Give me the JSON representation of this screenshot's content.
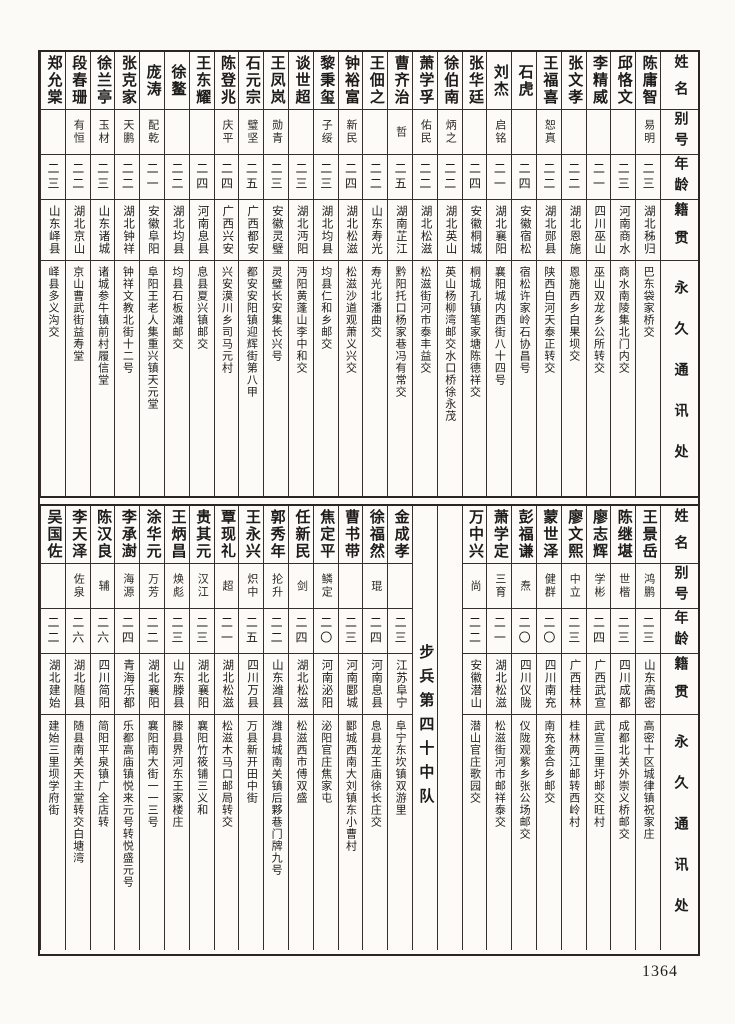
{
  "page_number": "1364",
  "headers": {
    "name": "姓名",
    "alias": "别号",
    "age": "年龄",
    "native_place": "籍贯",
    "address": "永久通讯处"
  },
  "sections": [
    {
      "columns": [
        {
          "type": "person",
          "name": "陈庸智",
          "alias": "易明",
          "age": "二三",
          "native": "湖北秭归",
          "address": "巴东袋家桥交"
        },
        {
          "type": "person",
          "name": "邱恪文",
          "alias": "",
          "age": "二三",
          "native": "河南商水",
          "address": "商水南陵集北门内交"
        },
        {
          "type": "person",
          "name": "李精威",
          "alias": "",
          "age": "二一",
          "native": "四川巫山",
          "address": "巫山双龙乡公所转交"
        },
        {
          "type": "person",
          "name": "张文孝",
          "alias": "",
          "age": "二二",
          "native": "湖北恩施",
          "address": "恩施西乡白果坝交"
        },
        {
          "type": "person",
          "name": "王福喜",
          "alias": "恕真",
          "age": "二二",
          "native": "湖北郧县",
          "address": "陕西白河天泰正转交"
        },
        {
          "type": "person",
          "name": "石虎",
          "alias": "",
          "age": "二四",
          "native": "安徽宿松",
          "address": "宿松许家岭石协昌号"
        },
        {
          "type": "person",
          "name": "刘杰",
          "alias": "启铭",
          "age": "二一",
          "native": "湖北襄阳",
          "address": "襄阳城内西街八十四号"
        },
        {
          "type": "person",
          "name": "张华廷",
          "alias": "",
          "age": "二四",
          "native": "安徽桐城",
          "address": "桐城孔镇笔家塘陈德祥交"
        },
        {
          "type": "person",
          "name": "徐伯南",
          "alias": "炳之",
          "age": "二二",
          "native": "湖北英山",
          "address": "英山杨柳湾邮交水口桥徐永茂"
        },
        {
          "type": "person",
          "name": "萧学孚",
          "alias": "佑民",
          "age": "二二",
          "native": "湖北松滋",
          "address": "松滋街河市泰丰益交"
        },
        {
          "type": "person",
          "name": "曹齐治",
          "alias": "哲",
          "age": "二五",
          "native": "湖南芷江",
          "address": "黔阳托口杨家巷冯有常交"
        },
        {
          "type": "person",
          "name": "王佃之",
          "alias": "",
          "age": "二二",
          "native": "山东寿光",
          "address": "寿光北潘曲交"
        },
        {
          "type": "person",
          "name": "钟裕富",
          "alias": "新民",
          "age": "二四",
          "native": "湖北松滋",
          "address": "松滋沙道观萧义兴交"
        },
        {
          "type": "person",
          "name": "黎秉玺",
          "alias": "子绥",
          "age": "二三",
          "native": "湖北均县",
          "address": "均县仁和乡邮交"
        },
        {
          "type": "person",
          "name": "谈世超",
          "alias": "",
          "age": "二三",
          "native": "湖北沔阳",
          "address": "沔阳黄蓬山李中和交"
        },
        {
          "type": "person",
          "name": "王凤岚",
          "alias": "勋青",
          "age": "二三",
          "native": "安徽灵璧",
          "address": "灵璧长安集长兴号"
        },
        {
          "type": "person",
          "name": "石元宗",
          "alias": "璧坚",
          "age": "二五",
          "native": "广西都安",
          "address": "都安安阳镇迎辉街第八甲"
        },
        {
          "type": "person",
          "name": "陈登兆",
          "alias": "庆平",
          "age": "二四",
          "native": "广西兴安",
          "address": "兴安漠川乡司马元村"
        },
        {
          "type": "person",
          "name": "王东耀",
          "alias": "",
          "age": "二四",
          "native": "河南息县",
          "address": "息县夏兴镇邮交"
        },
        {
          "type": "person",
          "name": "徐鳌",
          "alias": "",
          "age": "二二",
          "native": "湖北均县",
          "address": "均县石板滩邮交"
        },
        {
          "type": "person",
          "name": "庞涛",
          "alias": "配乾",
          "age": "二一",
          "native": "安徽阜阳",
          "address": "阜阳王老人集重兴镇天元堂"
        },
        {
          "type": "person",
          "name": "张克家",
          "alias": "天鹏",
          "age": "二二",
          "native": "湖北钟祥",
          "address": "钟祥文教北街十二号"
        },
        {
          "type": "person",
          "name": "徐兰亭",
          "alias": "玉材",
          "age": "二三",
          "native": "山东诸城",
          "address": "诸城参牛镇前村履信堂"
        },
        {
          "type": "person",
          "name": "段春珊",
          "alias": "有恒",
          "age": "二二",
          "native": "湖北京山",
          "address": "京山曹武街益寿堂"
        },
        {
          "type": "person",
          "name": "郑允棠",
          "alias": "",
          "age": "二三",
          "native": "山东峄县",
          "address": "峄县多义沟交"
        }
      ]
    },
    {
      "columns": [
        {
          "type": "person",
          "name": "王景岳",
          "alias": "鸿鹏",
          "age": "二三",
          "native": "山东高密",
          "address": "高密十区城律镇祝家庄"
        },
        {
          "type": "person",
          "name": "陈继堪",
          "alias": "世楷",
          "age": "二三",
          "native": "四川成都",
          "address": "成都北关外崇义桥邮交"
        },
        {
          "type": "person",
          "name": "廖志辉",
          "alias": "学彬",
          "age": "二四",
          "native": "广西武宣",
          "address": "武宣三里圩邮交旺村"
        },
        {
          "type": "person",
          "name": "廖文熙",
          "alias": "中立",
          "age": "二三",
          "native": "广西桂林",
          "address": "桂林两江邮转西岭村"
        },
        {
          "type": "person",
          "name": "蒙世泽",
          "alias": "健群",
          "age": "二〇",
          "native": "四川南充",
          "address": "南充金合乡邮交"
        },
        {
          "type": "person",
          "name": "彭福谦",
          "alias": "焘",
          "age": "二〇",
          "native": "四川仪陇",
          "address": "仪陇观紫乡张公场邮交"
        },
        {
          "type": "person",
          "name": "萧学定",
          "alias": "三育",
          "age": "二一",
          "native": "湖北松滋",
          "address": "松滋街河市邮祥泰交"
        },
        {
          "type": "person",
          "name": "万中兴",
          "alias": "尚",
          "age": "二二",
          "native": "安徽潜山",
          "address": "潜山官庄歌园交"
        },
        {
          "type": "spacer"
        },
        {
          "type": "unit",
          "label": "步兵第四十中队"
        },
        {
          "type": "person",
          "name": "金成孝",
          "alias": "",
          "age": "二三",
          "native": "江苏阜宁",
          "address": "阜宁东坎镇双游里"
        },
        {
          "type": "person",
          "name": "徐福然",
          "alias": "琨",
          "age": "二四",
          "native": "河南息县",
          "address": "息县龙王庙徐长庄交"
        },
        {
          "type": "person",
          "name": "曹书带",
          "alias": "",
          "age": "二三",
          "native": "河南郾城",
          "address": "郾城西南大刘镇东小曹村"
        },
        {
          "type": "person",
          "name": "焦定平",
          "alias": "鳞定",
          "age": "二〇",
          "native": "河南泌阳",
          "address": "泌阳官庄焦家屯"
        },
        {
          "type": "person",
          "name": "任新民",
          "alias": "剑",
          "age": "二四",
          "native": "湖北松滋",
          "address": "松滋西市傅双盛"
        },
        {
          "type": "person",
          "name": "郭秀年",
          "alias": "抡升",
          "age": "二二",
          "native": "山东潍县",
          "address": "潍县城南关镇后夥巷门牌九号"
        },
        {
          "type": "person",
          "name": "王永兴",
          "alias": "炽中",
          "age": "二五",
          "native": "四川万县",
          "address": "万县新开田中街"
        },
        {
          "type": "person",
          "name": "覃现礼",
          "alias": "超",
          "age": "二一",
          "native": "湖北松滋",
          "address": "松滋木马口邮局转交"
        },
        {
          "type": "person",
          "name": "贵其元",
          "alias": "汉江",
          "age": "二三",
          "native": "湖北襄阳",
          "address": "襄阳竹筱铺三义和"
        },
        {
          "type": "person",
          "name": "王炳昌",
          "alias": "焕彪",
          "age": "二三",
          "native": "山东滕县",
          "address": "滕县界河东王家楼庄"
        },
        {
          "type": "person",
          "name": "涂华元",
          "alias": "万芳",
          "age": "二二",
          "native": "湖北襄阳",
          "address": "襄阳南大街一一三号"
        },
        {
          "type": "person",
          "name": "李承澍",
          "alias": "海源",
          "age": "二四",
          "native": "青海乐都",
          "address": "乐都高庙镇悦来元号转悦盛元号"
        },
        {
          "type": "person",
          "name": "陈汉良",
          "alias": "辅",
          "age": "二六",
          "native": "四川简阳",
          "address": "简阳平泉镇广全店转"
        },
        {
          "type": "person",
          "name": "李天泽",
          "alias": "佐泉",
          "age": "二六",
          "native": "湖北随县",
          "address": "随县南关天主堂转交白塘湾"
        },
        {
          "type": "person",
          "name": "吴国佐",
          "alias": "",
          "age": "二二",
          "native": "湖北建始",
          "address": "建始三里坝学府街"
        }
      ]
    }
  ]
}
